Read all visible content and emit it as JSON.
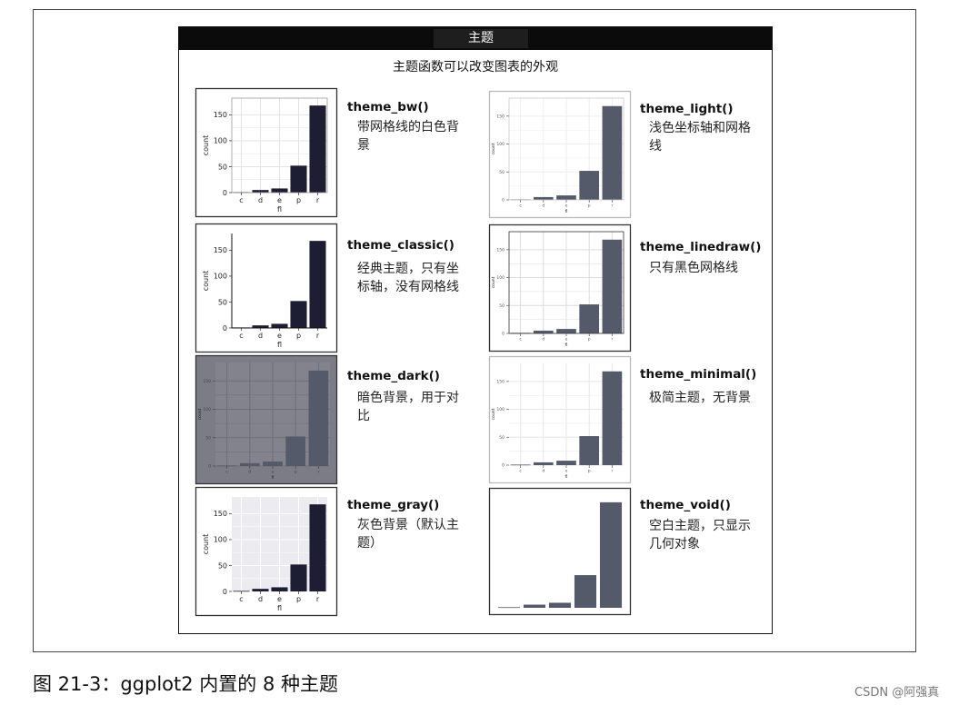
{
  "header": {
    "title": "主题"
  },
  "subtitle": "主题函数可以改变图表的外观",
  "caption": "图 21-3：ggplot2 内置的 8 种主题",
  "watermark": "CSDN @阿强真",
  "colors": {
    "bar_dark": "#1d1d33",
    "bar_grey": "#555a6a",
    "dark_panel_bg": "#83838d",
    "gray_panel_bg": "#ebebf0"
  },
  "themes": [
    {
      "name": "theme_bw()",
      "desc": "带网格线的白色背景"
    },
    {
      "name": "theme_light()",
      "desc": "浅色坐标轴和网格线"
    },
    {
      "name": "theme_classic()",
      "desc": "经典主题，只有坐标轴，没有网格线"
    },
    {
      "name": "theme_linedraw()",
      "desc": "只有黑色网格线"
    },
    {
      "name": "theme_dark()",
      "desc": "暗色背景，用于对比"
    },
    {
      "name": "theme_minimal()",
      "desc": "极简主题，无背景"
    },
    {
      "name": "theme_gray()",
      "desc": "灰色背景（默认主题）"
    },
    {
      "name": "theme_void()",
      "desc": "空白主题，只显示几何对象"
    }
  ],
  "chart_data": [
    {
      "type": "bar",
      "theme": "theme_bw",
      "categories": [
        "c",
        "d",
        "e",
        "p",
        "r"
      ],
      "values": [
        1,
        5,
        8,
        52,
        168
      ],
      "xlabel": "fl",
      "ylabel": "count",
      "yticks": [
        0,
        50,
        100,
        150
      ],
      "ylim": [
        0,
        175
      ],
      "grid": true
    },
    {
      "type": "bar",
      "theme": "theme_light",
      "categories": [
        "c",
        "d",
        "e",
        "p",
        "r"
      ],
      "values": [
        1,
        5,
        8,
        52,
        168
      ],
      "xlabel": "fl",
      "ylabel": "count",
      "yticks": [
        0,
        50,
        100,
        150
      ],
      "ylim": [
        0,
        175
      ],
      "grid": true
    },
    {
      "type": "bar",
      "theme": "theme_classic",
      "categories": [
        "c",
        "d",
        "e",
        "p",
        "r"
      ],
      "values": [
        1,
        5,
        8,
        52,
        168
      ],
      "xlabel": "fl",
      "ylabel": "count",
      "yticks": [
        0,
        50,
        100,
        150
      ],
      "ylim": [
        0,
        175
      ],
      "grid": false
    },
    {
      "type": "bar",
      "theme": "theme_linedraw",
      "categories": [
        "c",
        "d",
        "e",
        "p",
        "r"
      ],
      "values": [
        1,
        5,
        8,
        52,
        168
      ],
      "xlabel": "fl",
      "ylabel": "count",
      "yticks": [
        0,
        50,
        100,
        150
      ],
      "ylim": [
        0,
        175
      ],
      "grid": true
    },
    {
      "type": "bar",
      "theme": "theme_dark",
      "categories": [
        "c",
        "d",
        "e",
        "p",
        "r"
      ],
      "values": [
        1,
        5,
        8,
        52,
        168
      ],
      "xlabel": "fl",
      "ylabel": "count",
      "yticks": [
        0,
        50,
        100,
        150
      ],
      "ylim": [
        0,
        175
      ],
      "grid": true
    },
    {
      "type": "bar",
      "theme": "theme_minimal",
      "categories": [
        "c",
        "d",
        "e",
        "p",
        "r"
      ],
      "values": [
        1,
        5,
        8,
        52,
        168
      ],
      "xlabel": "fl",
      "ylabel": "count",
      "yticks": [
        0,
        50,
        100,
        150
      ],
      "ylim": [
        0,
        175
      ],
      "grid": true
    },
    {
      "type": "bar",
      "theme": "theme_gray",
      "categories": [
        "c",
        "d",
        "e",
        "p",
        "r"
      ],
      "values": [
        1,
        5,
        8,
        52,
        168
      ],
      "xlabel": "fl",
      "ylabel": "count",
      "yticks": [
        0,
        50,
        100,
        150
      ],
      "ylim": [
        0,
        175
      ],
      "grid": true
    },
    {
      "type": "bar",
      "theme": "theme_void",
      "categories": [
        "c",
        "d",
        "e",
        "p",
        "r"
      ],
      "values": [
        1,
        5,
        8,
        52,
        168
      ],
      "xlabel": "",
      "ylabel": "",
      "yticks": [],
      "ylim": [
        0,
        175
      ],
      "grid": false
    }
  ]
}
